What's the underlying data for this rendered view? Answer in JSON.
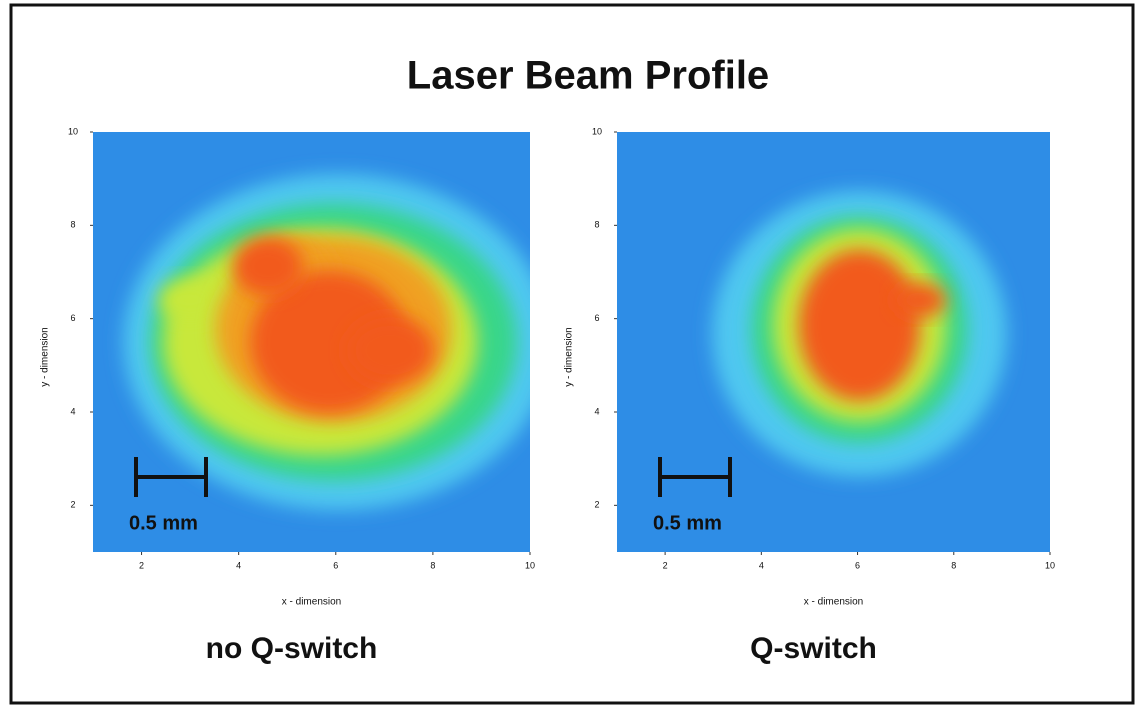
{
  "title": "Laser Beam Profile",
  "chart_data": [
    {
      "type": "heatmap",
      "xlabel": "x - dimension",
      "ylabel": "y - dimension",
      "caption": "no Q-switch",
      "annotation": "0.5 mm",
      "xlim": [
        1,
        10
      ],
      "ylim": [
        1,
        10
      ],
      "xticks": [
        2,
        4,
        6,
        8,
        10
      ],
      "yticks": [
        2,
        4,
        6,
        8,
        10
      ]
    },
    {
      "type": "heatmap",
      "xlabel": "x - dimension",
      "ylabel": "y - dimension",
      "caption": "Q-switch",
      "annotation": "0.5 mm",
      "xlim": [
        1,
        10
      ],
      "ylim": [
        1,
        10
      ],
      "xticks": [
        2,
        4,
        6,
        8,
        10
      ],
      "yticks": [
        2,
        4,
        6,
        8,
        10
      ]
    }
  ]
}
